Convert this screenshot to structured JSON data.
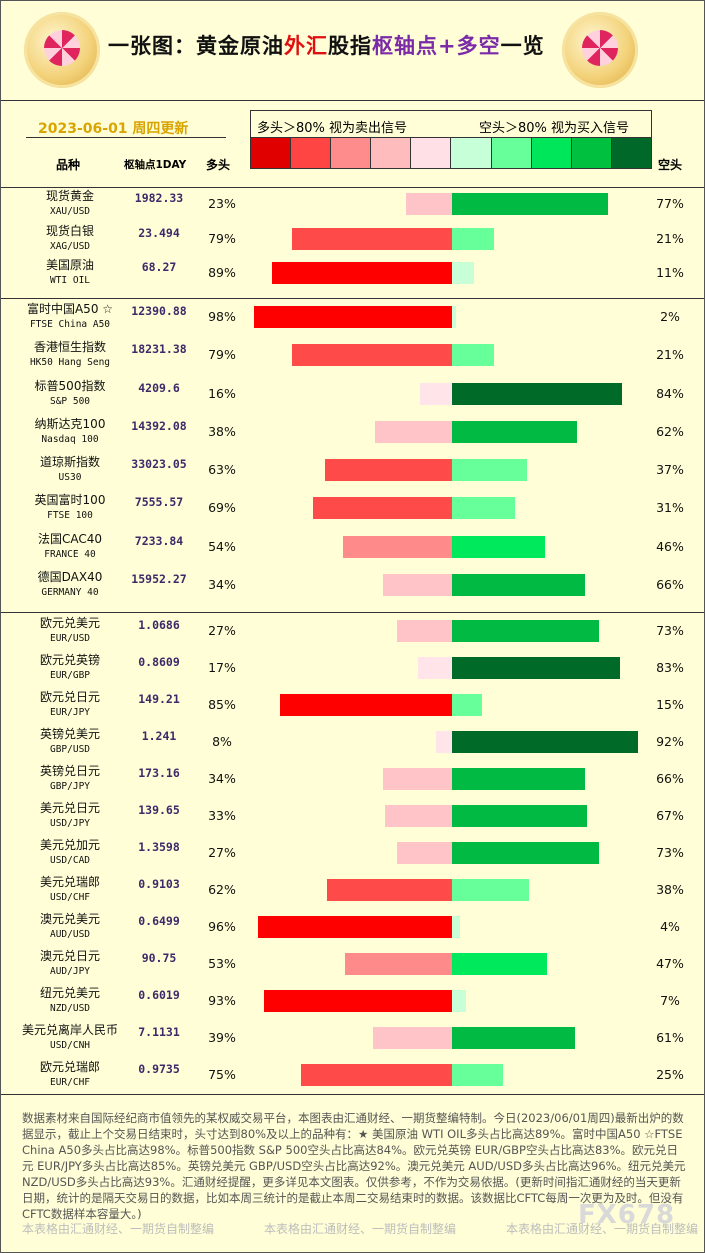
{
  "header": {
    "title_a": "一张图：黄金原油",
    "title_b": "外汇",
    "title_c": "股指",
    "title_d": "枢轴点+多空",
    "title_e": "一览",
    "date": "2023-06-01 周四更新",
    "legend_long": "多头＞80% 视为卖出信号",
    "legend_short": "空头＞80% 视为买入信号"
  },
  "columns": {
    "name": "品种",
    "pivot": "枢轴点1DAY",
    "long": "多头",
    "short": "空头"
  },
  "colors": {
    "scale": [
      "#e00000",
      "#ff4444",
      "#ff8c8c",
      "#ffbcbc",
      "#ffe0e6",
      "#c7ffd9",
      "#66ff99",
      "#00e65a",
      "#00c040",
      "#006828"
    ],
    "long": {
      "strong": "#ff0000",
      "mid": "#ff4a4a",
      "light": "#ff8a8a",
      "pale": "#ffc4c8",
      "faint": "#ffe4ea"
    },
    "short": {
      "strong": "#006a28",
      "mid": "#00ba44",
      "bright": "#00e85c",
      "light": "#66ff99",
      "faint": "#c8ffd6"
    }
  },
  "chart_data": {
    "type": "bar",
    "title": "一张图：黄金原油外汇股指枢轴点+多空一览",
    "orientation": "horizontal-diverging",
    "series": [
      {
        "name": "多头",
        "unit": "%"
      },
      {
        "name": "空头",
        "unit": "%"
      }
    ],
    "groups": [
      [
        {
          "name": "现货黄金",
          "code": "XAU/USD",
          "pivot": "1982.33",
          "long": 23,
          "short": 77
        },
        {
          "name": "现货白银",
          "code": "XAG/USD",
          "pivot": "23.494",
          "long": 79,
          "short": 21
        },
        {
          "name": "美国原油",
          "code": "WTI OIL",
          "pivot": "68.27",
          "long": 89,
          "short": 11
        }
      ],
      [
        {
          "name": "富时中国A50 ☆",
          "code": "FTSE China A50",
          "pivot": "12390.88",
          "long": 98,
          "short": 2
        },
        {
          "name": "香港恒生指数",
          "code": "HK50 Hang Seng",
          "pivot": "18231.38",
          "long": 79,
          "short": 21
        },
        {
          "name": "标普500指数",
          "code": "S&P 500",
          "pivot": "4209.6",
          "long": 16,
          "short": 84
        },
        {
          "name": "纳斯达克100",
          "code": "Nasdaq 100",
          "pivot": "14392.08",
          "long": 38,
          "short": 62
        },
        {
          "name": "道琼斯指数",
          "code": "US30",
          "pivot": "33023.05",
          "long": 63,
          "short": 37
        },
        {
          "name": "英国富时100",
          "code": "FTSE 100",
          "pivot": "7555.57",
          "long": 69,
          "short": 31
        },
        {
          "name": "法国CAC40",
          "code": "FRANCE 40",
          "pivot": "7233.84",
          "long": 54,
          "short": 46
        },
        {
          "name": "德国DAX40",
          "code": "GERMANY 40",
          "pivot": "15952.27",
          "long": 34,
          "short": 66
        }
      ],
      [
        {
          "name": "欧元兑美元",
          "code": "EUR/USD",
          "pivot": "1.0686",
          "long": 27,
          "short": 73
        },
        {
          "name": "欧元兑英镑",
          "code": "EUR/GBP",
          "pivot": "0.8609",
          "long": 17,
          "short": 83
        },
        {
          "name": "欧元兑日元",
          "code": "EUR/JPY",
          "pivot": "149.21",
          "long": 85,
          "short": 15
        },
        {
          "name": "英镑兑美元",
          "code": "GBP/USD",
          "pivot": "1.241",
          "long": 8,
          "short": 92
        },
        {
          "name": "英镑兑日元",
          "code": "GBP/JPY",
          "pivot": "173.16",
          "long": 34,
          "short": 66
        },
        {
          "name": "美元兑日元",
          "code": "USD/JPY",
          "pivot": "139.65",
          "long": 33,
          "short": 67
        },
        {
          "name": "美元兑加元",
          "code": "USD/CAD",
          "pivot": "1.3598",
          "long": 27,
          "short": 73
        },
        {
          "name": "美元兑瑞郎",
          "code": "USD/CHF",
          "pivot": "0.9103",
          "long": 62,
          "short": 38
        },
        {
          "name": "澳元兑美元",
          "code": "AUD/USD",
          "pivot": "0.6499",
          "long": 96,
          "short": 4
        },
        {
          "name": "澳元兑日元",
          "code": "AUD/JPY",
          "pivot": "90.75",
          "long": 53,
          "short": 47
        },
        {
          "name": "纽元兑美元",
          "code": "NZD/USD",
          "pivot": "0.6019",
          "long": 93,
          "short": 7
        },
        {
          "name": "美元兑离岸人民币",
          "code": "USD/CNH",
          "pivot": "7.1131",
          "long": 39,
          "short": 61
        },
        {
          "name": "欧元兑瑞郎",
          "code": "EUR/CHF",
          "pivot": "0.9735",
          "long": 75,
          "short": 25
        }
      ]
    ]
  },
  "footer": {
    "text": "数据素材来自国际经纪商市值领先的某权威交易平台，本图表由汇通财经、一期货整编特制。今日(2023/06/01周四)最新出炉的数据显示，截止上个交易日结束时，头寸达到80%及以上的品种有：★ 美国原油 WTI OIL多头占比高达89%。富时中国A50 ☆FTSE China A50多头占比高达98%。标普500指数 S&P 500空头占比高达84%。欧元兑英镑 EUR/GBP空头占比高达83%。欧元兑日元 EUR/JPY多头占比高达85%。英镑兑美元 GBP/USD空头占比高达92%。澳元兑美元 AUD/USD多头占比高达96%。纽元兑美元 NZD/USD多头占比高达93%。汇通财经提醒，更多详见本文图表。仅供参考，不作为交易依据。(更新时间指汇通财经的当天更新日期，统计的是隔天交易日的数据，比如本周三统计的是截止本周二交易结束时的数据。该数据比CFTC每周一次更为及时。但没有CFTC数据样本容量大。)",
    "watermark": "本表格由汇通财经、一期货自制整编",
    "brand": "FX678"
  }
}
